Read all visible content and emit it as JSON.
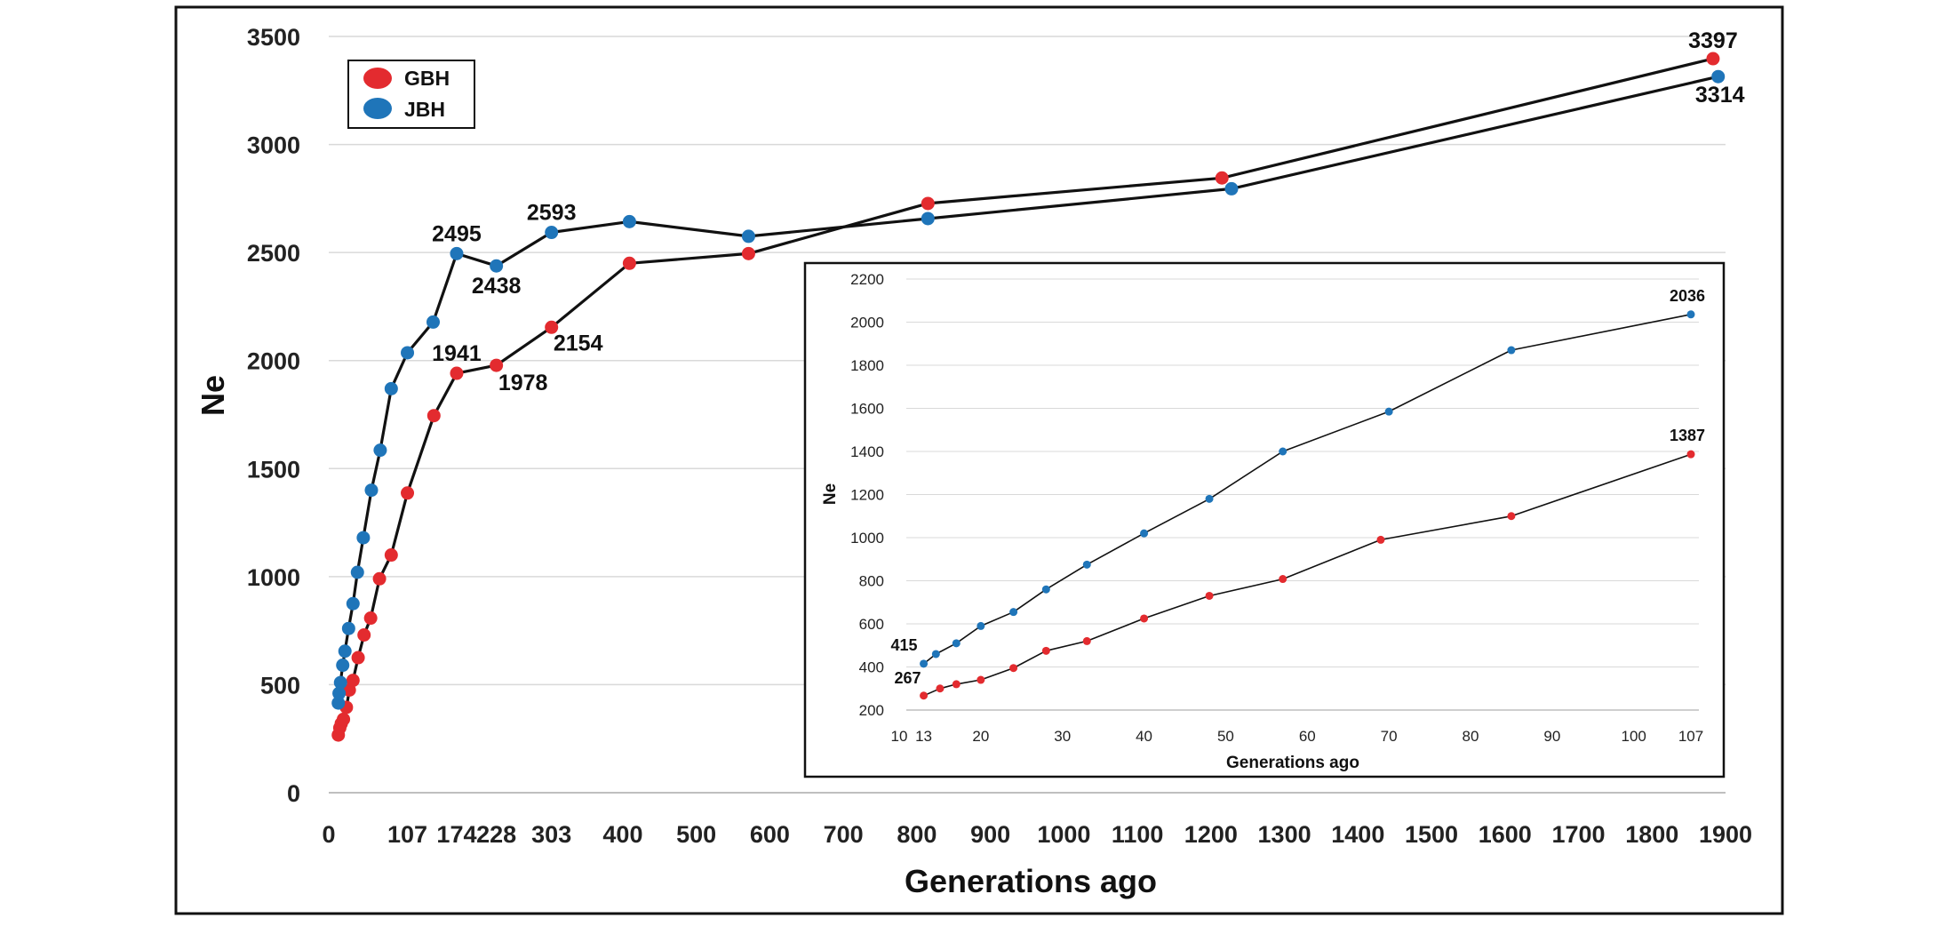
{
  "colors": {
    "GBH": "#e32b2f",
    "JBH": "#1f75b9",
    "line": "#111111",
    "grid": "#d9d9d9"
  },
  "chart_data": [
    {
      "id": "main",
      "type": "line",
      "title": "",
      "xlabel": "Generations ago",
      "ylabel": "Ne",
      "xlim": [
        0,
        1900
      ],
      "ylim": [
        0,
        3500
      ],
      "xticks": [
        0,
        107,
        174,
        228,
        303,
        400,
        500,
        600,
        700,
        800,
        900,
        1000,
        1100,
        1200,
        1300,
        1400,
        1500,
        1600,
        1700,
        1800,
        1900
      ],
      "xtick_labels": [
        "0",
        "107",
        "174",
        "228",
        "303",
        "400",
        "500",
        "600",
        "700",
        "800",
        "900",
        "1000",
        "1100",
        "1200",
        "1300",
        "1400",
        "1500",
        "1600",
        "1700",
        "1800",
        "1900"
      ],
      "yticks": [
        0,
        500,
        1000,
        1500,
        2000,
        2500,
        3000,
        3500
      ],
      "ytick_labels": [
        "0",
        "500",
        "1000",
        "1500",
        "2000",
        "2500",
        "3000",
        "3500"
      ],
      "legend": {
        "position": "top-left",
        "entries": [
          "GBH",
          "JBH"
        ]
      },
      "series": [
        {
          "name": "GBH",
          "x": [
            13,
            15,
            17,
            20,
            24,
            28,
            33,
            40,
            48,
            57,
            69,
            85,
            107,
            143,
            174,
            228,
            303,
            409,
            571,
            815,
            1215,
            1883
          ],
          "y": [
            267,
            300,
            320,
            340,
            395,
            475,
            520,
            625,
            730,
            808,
            990,
            1100,
            1387,
            1745,
            1941,
            1978,
            2154,
            2450,
            2495,
            2727,
            2845,
            3397
          ]
        },
        {
          "name": "JBH",
          "x": [
            13,
            14,
            16,
            19,
            22,
            27,
            33,
            39,
            47,
            58,
            70,
            85,
            107,
            142,
            174,
            228,
            303,
            409,
            571,
            815,
            1228,
            1890
          ],
          "y": [
            415,
            460,
            510,
            590,
            655,
            760,
            875,
            1020,
            1180,
            1400,
            1585,
            1870,
            2036,
            2178,
            2495,
            2438,
            2593,
            2643,
            2575,
            2657,
            2795,
            3314
          ]
        }
      ],
      "annotations": [
        {
          "series": "GBH",
          "x": 174,
          "y": 1941,
          "text": "1941"
        },
        {
          "series": "GBH",
          "x": 228,
          "y": 1978,
          "text": "1978"
        },
        {
          "series": "GBH",
          "x": 303,
          "y": 2154,
          "text": "2154"
        },
        {
          "series": "GBH",
          "x": 1883,
          "y": 3397,
          "text": "3397"
        },
        {
          "series": "JBH",
          "x": 174,
          "y": 2495,
          "text": "2495"
        },
        {
          "series": "JBH",
          "x": 228,
          "y": 2438,
          "text": "2438"
        },
        {
          "series": "JBH",
          "x": 303,
          "y": 2593,
          "text": "2593"
        },
        {
          "series": "JBH",
          "x": 1890,
          "y": 3314,
          "text": "3314"
        }
      ]
    },
    {
      "id": "inset",
      "type": "line",
      "title": "",
      "xlabel": "Generations ago",
      "ylabel": "Ne",
      "xlim": [
        10,
        107
      ],
      "ylim": [
        200,
        2200
      ],
      "xticks": [
        10,
        13,
        20,
        30,
        40,
        50,
        60,
        70,
        80,
        90,
        100,
        107
      ],
      "xtick_labels": [
        "10",
        "13",
        "20",
        "30",
        "40",
        "50",
        "60",
        "70",
        "80",
        "90",
        "100",
        "107"
      ],
      "yticks": [
        200,
        400,
        600,
        800,
        1000,
        1200,
        1400,
        1600,
        1800,
        2000,
        2200
      ],
      "ytick_labels": [
        "200",
        "400",
        "600",
        "800",
        "1000",
        "1200",
        "1400",
        "1600",
        "1800",
        "2000",
        "2200"
      ],
      "series": [
        {
          "name": "GBH",
          "x": [
            13,
            15,
            17,
            20,
            24,
            28,
            33,
            40,
            48,
            57,
            69,
            85,
            107
          ],
          "y": [
            267,
            300,
            320,
            340,
            395,
            475,
            520,
            625,
            730,
            808,
            990,
            1100,
            1387
          ]
        },
        {
          "name": "JBH",
          "x": [
            13,
            14.5,
            17,
            20,
            24,
            28,
            33,
            40,
            48,
            57,
            70,
            85,
            107
          ],
          "y": [
            415,
            460,
            510,
            590,
            655,
            760,
            875,
            1020,
            1180,
            1400,
            1585,
            1870,
            2036
          ]
        }
      ],
      "annotations": [
        {
          "series": "JBH",
          "x": 13,
          "y": 415,
          "text": "415"
        },
        {
          "series": "GBH",
          "x": 13,
          "y": 267,
          "text": "267"
        },
        {
          "series": "JBH",
          "x": 107,
          "y": 2036,
          "text": "2036"
        },
        {
          "series": "GBH",
          "x": 107,
          "y": 1387,
          "text": "1387"
        }
      ]
    }
  ]
}
